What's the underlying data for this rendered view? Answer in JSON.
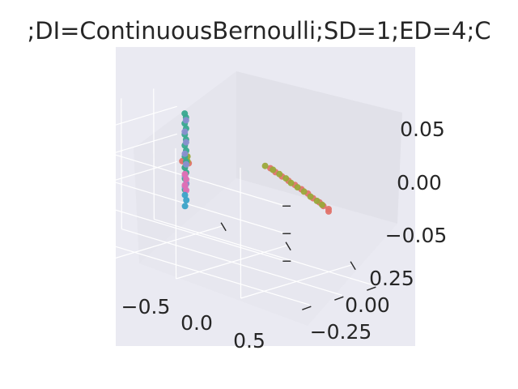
{
  "chart_data": {
    "type": "scatter",
    "projection": "3d",
    "title": ";DI=ContinuousBernoulli;SD=1;ED=4;C",
    "xlabel": "",
    "ylabel": "",
    "zlabel": "",
    "x_ticks": [
      "−0.5",
      "0.0",
      "0.5"
    ],
    "y_ticks": [
      "−0.25",
      "0.00",
      "0.25"
    ],
    "z_ticks": [
      "−0.05",
      "0.00",
      "0.05"
    ],
    "grid": true,
    "background_color": "#eaeaf2",
    "series": [
      {
        "color": "#e0736a",
        "points": [
          [
            0.73,
            -0.02,
            0.0
          ],
          [
            0.7,
            -0.05,
            0.0
          ],
          [
            0.64,
            -0.07,
            0.0
          ],
          [
            0.58,
            -0.1,
            0.0
          ],
          [
            0.5,
            -0.13,
            0.0
          ],
          [
            0.42,
            -0.17,
            0.0
          ],
          [
            0.34,
            -0.2,
            0.0
          ],
          [
            0.26,
            -0.23,
            0.0
          ],
          [
            0.18,
            -0.26,
            0.0
          ],
          [
            0.1,
            -0.29,
            0.0
          ],
          [
            0.02,
            -0.32,
            0.0
          ],
          [
            -0.05,
            -0.35,
            0.0
          ],
          [
            -0.45,
            -0.12,
            -0.003
          ],
          [
            -0.46,
            -0.1,
            0.0
          ],
          [
            -0.46,
            -0.08,
            0.003
          ]
        ]
      },
      {
        "color": "#9aa83a",
        "points": [
          [
            0.62,
            -0.08,
            0.0
          ],
          [
            0.55,
            -0.11,
            0.0
          ],
          [
            0.47,
            -0.14,
            0.0
          ],
          [
            0.38,
            -0.18,
            0.0
          ],
          [
            0.3,
            -0.21,
            0.0
          ],
          [
            0.22,
            -0.24,
            0.0
          ],
          [
            0.14,
            -0.28,
            0.0
          ],
          [
            0.06,
            -0.31,
            0.0
          ],
          [
            -0.02,
            -0.34,
            0.0
          ],
          [
            -0.1,
            -0.36,
            0.0
          ],
          [
            -0.46,
            -0.12,
            0.0
          ],
          [
            -0.46,
            -0.1,
            -0.01
          ],
          [
            -0.45,
            -0.11,
            0.01
          ]
        ]
      },
      {
        "color": "#38a88f",
        "points": [
          [
            -0.46,
            -0.1,
            0.088
          ],
          [
            -0.46,
            -0.11,
            0.08
          ],
          [
            -0.46,
            -0.1,
            0.07
          ],
          [
            -0.46,
            -0.11,
            0.06
          ],
          [
            -0.46,
            -0.1,
            0.05
          ],
          [
            -0.46,
            -0.11,
            0.04
          ],
          [
            -0.46,
            -0.1,
            0.03
          ],
          [
            -0.46,
            -0.11,
            0.02
          ],
          [
            -0.46,
            -0.1,
            0.01
          ],
          [
            -0.46,
            -0.11,
            0.0
          ],
          [
            -0.46,
            -0.1,
            -0.01
          ],
          [
            -0.46,
            -0.11,
            -0.02
          ],
          [
            -0.46,
            -0.1,
            -0.03
          ],
          [
            -0.46,
            -0.11,
            -0.04
          ],
          [
            -0.46,
            -0.1,
            -0.05
          ]
        ]
      },
      {
        "color": "#8a8fd0",
        "points": [
          [
            -0.46,
            -0.11,
            0.075
          ],
          [
            -0.46,
            -0.1,
            0.055
          ],
          [
            -0.46,
            -0.11,
            0.035
          ],
          [
            -0.46,
            -0.1,
            0.015
          ],
          [
            -0.46,
            -0.11,
            -0.005
          ],
          [
            -0.46,
            -0.1,
            -0.025
          ],
          [
            -0.46,
            -0.11,
            -0.04
          ],
          [
            -0.46,
            -0.1,
            -0.045
          ]
        ]
      },
      {
        "color": "#e26fb4",
        "points": [
          [
            -0.46,
            -0.1,
            -0.022
          ],
          [
            -0.46,
            -0.11,
            -0.032
          ],
          [
            -0.46,
            -0.1,
            -0.042
          ],
          [
            -0.46,
            -0.11,
            -0.052
          ]
        ]
      },
      {
        "color": "#3ba3c8",
        "points": [
          [
            -0.46,
            -0.1,
            -0.06
          ],
          [
            -0.46,
            -0.11,
            -0.07
          ],
          [
            -0.46,
            -0.1,
            -0.08
          ]
        ]
      }
    ]
  }
}
